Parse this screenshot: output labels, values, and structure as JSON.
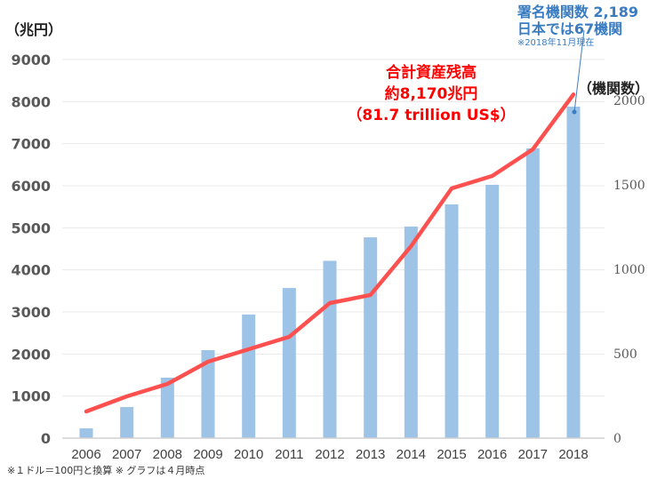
{
  "chart_data": {
    "type": "bar+line",
    "categories": [
      "2006",
      "2007",
      "2008",
      "2009",
      "2010",
      "2011",
      "2012",
      "2013",
      "2014",
      "2015",
      "2016",
      "2017",
      "2018"
    ],
    "series": [
      {
        "name": "機関数",
        "type": "bar",
        "axis": "right",
        "color": "#9dc3e6",
        "values": [
          58,
          184,
          358,
          521,
          732,
          889,
          1050,
          1189,
          1253,
          1384,
          1500,
          1716,
          1963
        ]
      },
      {
        "name": "合計資産残高(兆円)",
        "type": "line",
        "axis": "left",
        "color": "#ff5050",
        "values": [
          634,
          993,
          1289,
          1817,
          2113,
          2409,
          3211,
          3402,
          4563,
          5937,
          6233,
          6867,
          8170
        ]
      }
    ],
    "left_axis": {
      "label": "（兆円）",
      "ylim": [
        0,
        9000
      ],
      "ticks": [
        "0",
        "1000",
        "2000",
        "3000",
        "4000",
        "5000",
        "6000",
        "7000",
        "8000",
        "9000"
      ]
    },
    "right_axis": {
      "label": "（機関数）",
      "ylim": [
        0,
        2242
      ],
      "ticks": [
        "0",
        "500",
        "1000",
        "1500",
        "2000"
      ]
    },
    "grid": true,
    "annotations": {
      "assets": [
        "合計資産残高",
        "約8,170兆円",
        "（81.7 trillion US$）"
      ],
      "signatories": [
        "署名機関数 2,189",
        "日本では67機関",
        "※2018年11月現在"
      ]
    },
    "footnote": "※１ドル＝100円と換算  ※ グラフは４月時点"
  }
}
